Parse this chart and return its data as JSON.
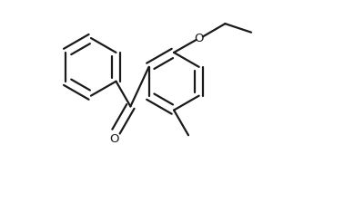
{
  "background_color": "#ffffff",
  "line_color": "#1a1a1a",
  "line_width": 1.6,
  "figsize": [
    3.78,
    2.24
  ],
  "dpi": 100,
  "xlim": [
    -0.5,
    9.5
  ],
  "ylim": [
    -1.5,
    5.5
  ]
}
